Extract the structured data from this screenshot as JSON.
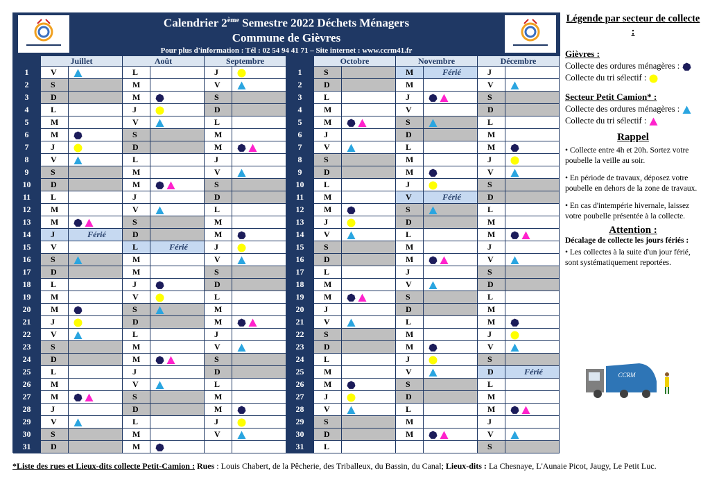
{
  "header": {
    "title_start": "Calendrier 2",
    "title_sup": "ème",
    "title_end": " Semestre 2022 Déchets Ménagers",
    "subtitle": "Commune de Gièvres",
    "info": "Pour plus d'information : Tél : 02 54 94 41 71 – Site internet : www.ccrm41.fr"
  },
  "day_numbers": [
    "1",
    "2",
    "3",
    "4",
    "5",
    "6",
    "7",
    "8",
    "9",
    "10",
    "11",
    "12",
    "13",
    "14",
    "15",
    "16",
    "17",
    "18",
    "19",
    "20",
    "21",
    "22",
    "23",
    "24",
    "25",
    "26",
    "27",
    "28",
    "29",
    "30",
    "31"
  ],
  "months": [
    {
      "name": "Juillet",
      "days": [
        [
          "V",
          "t"
        ],
        [
          "S",
          ""
        ],
        [
          "D",
          ""
        ],
        [
          "L",
          ""
        ],
        [
          "M",
          ""
        ],
        [
          "M",
          "c"
        ],
        [
          "J",
          "y"
        ],
        [
          "V",
          "t"
        ],
        [
          "S",
          ""
        ],
        [
          "D",
          ""
        ],
        [
          "L",
          ""
        ],
        [
          "M",
          ""
        ],
        [
          "M",
          "cm"
        ],
        [
          "J",
          "",
          "Férié"
        ],
        [
          "V",
          ""
        ],
        [
          "S",
          "t"
        ],
        [
          "D",
          ""
        ],
        [
          "L",
          ""
        ],
        [
          "M",
          ""
        ],
        [
          "M",
          "c"
        ],
        [
          "J",
          "y"
        ],
        [
          "V",
          "t"
        ],
        [
          "S",
          ""
        ],
        [
          "D",
          ""
        ],
        [
          "L",
          ""
        ],
        [
          "M",
          ""
        ],
        [
          "M",
          "cm"
        ],
        [
          "J",
          ""
        ],
        [
          "V",
          "t"
        ],
        [
          "S",
          ""
        ],
        [
          "D",
          ""
        ]
      ]
    },
    {
      "name": "Août",
      "days": [
        [
          "L",
          ""
        ],
        [
          "M",
          ""
        ],
        [
          "M",
          "c"
        ],
        [
          "J",
          "y"
        ],
        [
          "V",
          "t"
        ],
        [
          "S",
          ""
        ],
        [
          "D",
          ""
        ],
        [
          "L",
          ""
        ],
        [
          "M",
          ""
        ],
        [
          "M",
          "cm"
        ],
        [
          "J",
          ""
        ],
        [
          "V",
          "t"
        ],
        [
          "S",
          ""
        ],
        [
          "D",
          ""
        ],
        [
          "L",
          "",
          "Férié"
        ],
        [
          "M",
          ""
        ],
        [
          "M",
          ""
        ],
        [
          "J",
          "c"
        ],
        [
          "V",
          "y"
        ],
        [
          "S",
          "t"
        ],
        [
          "D",
          ""
        ],
        [
          "L",
          ""
        ],
        [
          "M",
          ""
        ],
        [
          "M",
          "cm"
        ],
        [
          "J",
          ""
        ],
        [
          "V",
          "t"
        ],
        [
          "S",
          ""
        ],
        [
          "D",
          ""
        ],
        [
          "L",
          ""
        ],
        [
          "M",
          ""
        ],
        [
          "M",
          "c"
        ]
      ]
    },
    {
      "name": "Septembre",
      "days": [
        [
          "J",
          "y"
        ],
        [
          "V",
          "t"
        ],
        [
          "S",
          ""
        ],
        [
          "D",
          ""
        ],
        [
          "L",
          ""
        ],
        [
          "M",
          ""
        ],
        [
          "M",
          "cm"
        ],
        [
          "J",
          ""
        ],
        [
          "V",
          "t"
        ],
        [
          "S",
          ""
        ],
        [
          "D",
          ""
        ],
        [
          "L",
          ""
        ],
        [
          "M",
          ""
        ],
        [
          "M",
          "c"
        ],
        [
          "J",
          "y"
        ],
        [
          "V",
          "t"
        ],
        [
          "S",
          ""
        ],
        [
          "D",
          ""
        ],
        [
          "L",
          ""
        ],
        [
          "M",
          ""
        ],
        [
          "M",
          "cm"
        ],
        [
          "J",
          ""
        ],
        [
          "V",
          "t"
        ],
        [
          "S",
          ""
        ],
        [
          "D",
          ""
        ],
        [
          "L",
          ""
        ],
        [
          "M",
          ""
        ],
        [
          "M",
          "c"
        ],
        [
          "J",
          "y"
        ],
        [
          "V",
          "t"
        ],
        null
      ]
    },
    {
      "name": "Octobre",
      "days": [
        [
          "S",
          ""
        ],
        [
          "D",
          ""
        ],
        [
          "L",
          ""
        ],
        [
          "M",
          ""
        ],
        [
          "M",
          "cm"
        ],
        [
          "J",
          ""
        ],
        [
          "V",
          "t"
        ],
        [
          "S",
          ""
        ],
        [
          "D",
          ""
        ],
        [
          "L",
          ""
        ],
        [
          "M",
          ""
        ],
        [
          "M",
          "c"
        ],
        [
          "J",
          "y"
        ],
        [
          "V",
          "t"
        ],
        [
          "S",
          ""
        ],
        [
          "D",
          ""
        ],
        [
          "L",
          ""
        ],
        [
          "M",
          ""
        ],
        [
          "M",
          "cm"
        ],
        [
          "J",
          ""
        ],
        [
          "V",
          "t"
        ],
        [
          "S",
          ""
        ],
        [
          "D",
          ""
        ],
        [
          "L",
          ""
        ],
        [
          "M",
          ""
        ],
        [
          "M",
          "c"
        ],
        [
          "J",
          "y"
        ],
        [
          "V",
          "t"
        ],
        [
          "S",
          ""
        ],
        [
          "D",
          ""
        ],
        [
          "L",
          ""
        ]
      ]
    },
    {
      "name": "Novembre",
      "days": [
        [
          "M",
          "",
          "Férié"
        ],
        [
          "M",
          ""
        ],
        [
          "J",
          "cm"
        ],
        [
          "V",
          ""
        ],
        [
          "S",
          "t"
        ],
        [
          "D",
          ""
        ],
        [
          "L",
          ""
        ],
        [
          "M",
          ""
        ],
        [
          "M",
          "c"
        ],
        [
          "J",
          "y"
        ],
        [
          "V",
          "",
          "Férié"
        ],
        [
          "S",
          "t"
        ],
        [
          "D",
          ""
        ],
        [
          "L",
          ""
        ],
        [
          "M",
          ""
        ],
        [
          "M",
          "cm"
        ],
        [
          "J",
          ""
        ],
        [
          "V",
          "t"
        ],
        [
          "S",
          ""
        ],
        [
          "D",
          ""
        ],
        [
          "L",
          ""
        ],
        [
          "M",
          ""
        ],
        [
          "M",
          "c"
        ],
        [
          "J",
          "y"
        ],
        [
          "V",
          "t"
        ],
        [
          "S",
          ""
        ],
        [
          "D",
          ""
        ],
        [
          "L",
          ""
        ],
        [
          "M",
          ""
        ],
        [
          "M",
          "cm"
        ],
        null
      ]
    },
    {
      "name": "Décembre",
      "days": [
        [
          "J",
          ""
        ],
        [
          "V",
          "t"
        ],
        [
          "S",
          ""
        ],
        [
          "D",
          ""
        ],
        [
          "L",
          ""
        ],
        [
          "M",
          ""
        ],
        [
          "M",
          "c"
        ],
        [
          "J",
          "y"
        ],
        [
          "V",
          "t"
        ],
        [
          "S",
          ""
        ],
        [
          "D",
          ""
        ],
        [
          "L",
          ""
        ],
        [
          "M",
          ""
        ],
        [
          "M",
          "cm"
        ],
        [
          "J",
          ""
        ],
        [
          "V",
          "t"
        ],
        [
          "S",
          ""
        ],
        [
          "D",
          ""
        ],
        [
          "L",
          ""
        ],
        [
          "M",
          ""
        ],
        [
          "M",
          "c"
        ],
        [
          "J",
          "y"
        ],
        [
          "V",
          "t"
        ],
        [
          "S",
          ""
        ],
        [
          "D",
          "",
          "Férié"
        ],
        [
          "L",
          ""
        ],
        [
          "M",
          ""
        ],
        [
          "M",
          "cm"
        ],
        [
          "J",
          ""
        ],
        [
          "V",
          "t"
        ],
        [
          "S",
          ""
        ]
      ]
    }
  ],
  "legend": {
    "title": "Légende par secteur de collecte :",
    "sectors": [
      {
        "name": "Gièvres :",
        "items": [
          {
            "label": "Collecte des ordures ménagères :",
            "mark": "c"
          },
          {
            "label": "Collecte du tri sélectif :",
            "mark": "y"
          }
        ]
      },
      {
        "name": "Secteur Petit Camion* :",
        "items": [
          {
            "label": "Collecte des ordures ménagères :",
            "mark": "t"
          },
          {
            "label": "Collecte du tri sélectif :",
            "mark": "m"
          }
        ]
      }
    ]
  },
  "rappel": {
    "title": "Rappel",
    "items": [
      "• Collecte entre 4h et 20h. Sortez votre poubelle la veille au soir.",
      "• En période de travaux, déposez votre poubelle en dehors de la zone de travaux.",
      "• En cas d'intempérie hivernale, laissez votre poubelle présentée à la collecte."
    ]
  },
  "attention": {
    "title": "Attention :",
    "subtitle": "Décalage de collecte les jours fériés :",
    "text": "• Les collectes à la suite d'un jour férié, sont systématiquement reportées."
  },
  "truck_label": "CCRM",
  "footer": {
    "lead": "*Liste des rues et Lieux-dits collecte Petit-Camion :",
    "rues_label": "Rues",
    "rues": " : Louis Chabert, de la Pêcherie, des Triballeux, du Bassin, du Canal; ",
    "lieux_label": "Lieux-dits :",
    "lieux": " La Chesnaye, L'Aunaie Picot, Jaugy, Le Petit Luc."
  }
}
